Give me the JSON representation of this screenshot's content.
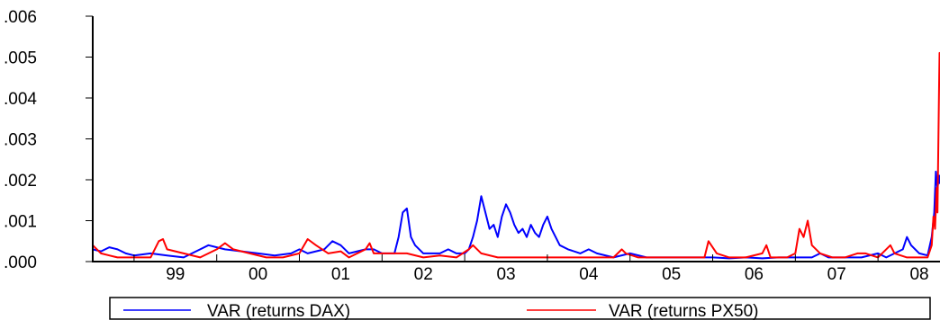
{
  "chart_data": {
    "type": "line",
    "title": "",
    "xlabel": "",
    "ylabel": "",
    "ylim": [
      0,
      0.006
    ],
    "xlim": [
      1998.5,
      2008.75
    ],
    "y_ticks": [
      ".000",
      ".001",
      ".002",
      ".003",
      ".004",
      ".005",
      ".006"
    ],
    "y_tick_values": [
      0,
      0.001,
      0.002,
      0.003,
      0.004,
      0.005,
      0.006
    ],
    "x_tick_labels": [
      "99",
      "00",
      "01",
      "02",
      "03",
      "04",
      "05",
      "06",
      "07",
      "08"
    ],
    "grid": false,
    "legend_position": "bottom",
    "series": [
      {
        "name": "VAR (returns DAX)",
        "color": "#0000ff",
        "points": [
          [
            1998.5,
            0.0003
          ],
          [
            1998.6,
            0.00025
          ],
          [
            1998.7,
            0.00035
          ],
          [
            1998.8,
            0.0003
          ],
          [
            1998.9,
            0.0002
          ],
          [
            1999.0,
            0.00015
          ],
          [
            1999.2,
            0.0002
          ],
          [
            1999.4,
            0.00015
          ],
          [
            1999.6,
            0.0001
          ],
          [
            1999.8,
            0.0003
          ],
          [
            1999.9,
            0.0004
          ],
          [
            2000.0,
            0.00035
          ],
          [
            2000.1,
            0.0003
          ],
          [
            2000.3,
            0.00025
          ],
          [
            2000.5,
            0.0002
          ],
          [
            2000.7,
            0.00015
          ],
          [
            2000.9,
            0.0002
          ],
          [
            2001.0,
            0.0003
          ],
          [
            2001.1,
            0.0002
          ],
          [
            2001.3,
            0.0003
          ],
          [
            2001.4,
            0.0005
          ],
          [
            2001.5,
            0.0004
          ],
          [
            2001.6,
            0.0002
          ],
          [
            2001.8,
            0.0003
          ],
          [
            2001.9,
            0.0003
          ],
          [
            2002.0,
            0.0002
          ],
          [
            2002.15,
            0.0002
          ],
          [
            2002.2,
            0.0006
          ],
          [
            2002.25,
            0.0012
          ],
          [
            2002.3,
            0.0013
          ],
          [
            2002.35,
            0.0006
          ],
          [
            2002.4,
            0.0004
          ],
          [
            2002.5,
            0.0002
          ],
          [
            2002.7,
            0.0002
          ],
          [
            2002.8,
            0.0003
          ],
          [
            2002.9,
            0.0002
          ],
          [
            2003.0,
            0.0002
          ],
          [
            2003.05,
            0.0003
          ],
          [
            2003.1,
            0.0006
          ],
          [
            2003.15,
            0.001
          ],
          [
            2003.2,
            0.0016
          ],
          [
            2003.25,
            0.0012
          ],
          [
            2003.3,
            0.0008
          ],
          [
            2003.35,
            0.0009
          ],
          [
            2003.4,
            0.0006
          ],
          [
            2003.45,
            0.0011
          ],
          [
            2003.5,
            0.0014
          ],
          [
            2003.55,
            0.0012
          ],
          [
            2003.6,
            0.0009
          ],
          [
            2003.65,
            0.0007
          ],
          [
            2003.7,
            0.0008
          ],
          [
            2003.75,
            0.0006
          ],
          [
            2003.8,
            0.0009
          ],
          [
            2003.85,
            0.0007
          ],
          [
            2003.9,
            0.0006
          ],
          [
            2003.95,
            0.0009
          ],
          [
            2004.0,
            0.0011
          ],
          [
            2004.05,
            0.0008
          ],
          [
            2004.1,
            0.0006
          ],
          [
            2004.15,
            0.0004
          ],
          [
            2004.25,
            0.0003
          ],
          [
            2004.4,
            0.0002
          ],
          [
            2004.5,
            0.0003
          ],
          [
            2004.6,
            0.0002
          ],
          [
            2004.8,
            0.0001
          ],
          [
            2005.0,
            0.0002
          ],
          [
            2005.2,
            0.0001
          ],
          [
            2005.4,
            0.0001
          ],
          [
            2005.6,
            0.0001
          ],
          [
            2005.8,
            0.0001
          ],
          [
            2006.0,
            0.0001
          ],
          [
            2006.2,
            8e-05
          ],
          [
            2006.4,
            0.0001
          ],
          [
            2006.6,
            8e-05
          ],
          [
            2006.8,
            0.0001
          ],
          [
            2007.0,
            0.0001
          ],
          [
            2007.2,
            0.0001
          ],
          [
            2007.3,
            0.0002
          ],
          [
            2007.4,
            0.0001
          ],
          [
            2007.6,
            0.0001
          ],
          [
            2007.8,
            0.0001
          ],
          [
            2008.0,
            0.0002
          ],
          [
            2008.1,
            0.0001
          ],
          [
            2008.3,
            0.0003
          ],
          [
            2008.35,
            0.0006
          ],
          [
            2008.4,
            0.0004
          ],
          [
            2008.5,
            0.0002
          ],
          [
            2008.6,
            0.00015
          ],
          [
            2008.65,
            0.0006
          ],
          [
            2008.68,
            0.0012
          ],
          [
            2008.7,
            0.0022
          ],
          [
            2008.72,
            0.0018
          ],
          [
            2008.74,
            0.0021
          ],
          [
            2008.75,
            0.0019
          ]
        ]
      },
      {
        "name": "VAR (returns PX50)",
        "color": "#ff0000",
        "points": [
          [
            1998.5,
            0.0004
          ],
          [
            1998.6,
            0.0002
          ],
          [
            1998.7,
            0.00015
          ],
          [
            1998.8,
            0.0001
          ],
          [
            1998.9,
            0.0001
          ],
          [
            1999.0,
            0.0001
          ],
          [
            1999.2,
            0.0001
          ],
          [
            1999.3,
            0.0005
          ],
          [
            1999.35,
            0.00055
          ],
          [
            1999.4,
            0.0003
          ],
          [
            1999.6,
            0.0002
          ],
          [
            1999.8,
            0.0001
          ],
          [
            2000.0,
            0.0003
          ],
          [
            2000.1,
            0.00045
          ],
          [
            2000.2,
            0.0003
          ],
          [
            2000.4,
            0.0002
          ],
          [
            2000.6,
            0.0001
          ],
          [
            2000.8,
            0.0001
          ],
          [
            2001.0,
            0.0002
          ],
          [
            2001.1,
            0.00055
          ],
          [
            2001.2,
            0.0004
          ],
          [
            2001.35,
            0.0002
          ],
          [
            2001.5,
            0.00025
          ],
          [
            2001.6,
            0.0001
          ],
          [
            2001.8,
            0.0003
          ],
          [
            2001.85,
            0.00045
          ],
          [
            2001.9,
            0.0002
          ],
          [
            2002.1,
            0.0002
          ],
          [
            2002.3,
            0.0002
          ],
          [
            2002.5,
            0.0001
          ],
          [
            2002.7,
            0.00015
          ],
          [
            2002.9,
            0.0001
          ],
          [
            2003.05,
            0.0003
          ],
          [
            2003.1,
            0.0004
          ],
          [
            2003.2,
            0.0002
          ],
          [
            2003.4,
            0.0001
          ],
          [
            2003.6,
            0.0001
          ],
          [
            2003.8,
            0.0001
          ],
          [
            2004.0,
            0.0001
          ],
          [
            2004.2,
            0.0001
          ],
          [
            2004.4,
            0.0001
          ],
          [
            2004.6,
            0.0001
          ],
          [
            2004.8,
            0.0001
          ],
          [
            2004.9,
            0.0003
          ],
          [
            2004.95,
            0.0002
          ],
          [
            2005.1,
            0.0001
          ],
          [
            2005.3,
            0.0001
          ],
          [
            2005.5,
            0.0001
          ],
          [
            2005.7,
            0.0001
          ],
          [
            2005.9,
            0.0001
          ],
          [
            2005.95,
            0.0005
          ],
          [
            2006.05,
            0.0002
          ],
          [
            2006.2,
            0.0001
          ],
          [
            2006.4,
            0.0001
          ],
          [
            2006.6,
            0.0002
          ],
          [
            2006.65,
            0.0004
          ],
          [
            2006.7,
            0.0001
          ],
          [
            2006.9,
            0.0001
          ],
          [
            2007.0,
            0.0002
          ],
          [
            2007.05,
            0.0008
          ],
          [
            2007.1,
            0.0006
          ],
          [
            2007.15,
            0.001
          ],
          [
            2007.2,
            0.0004
          ],
          [
            2007.3,
            0.0002
          ],
          [
            2007.45,
            0.0001
          ],
          [
            2007.6,
            0.0001
          ],
          [
            2007.75,
            0.0002
          ],
          [
            2007.85,
            0.0002
          ],
          [
            2008.0,
            0.0001
          ],
          [
            2008.15,
            0.0004
          ],
          [
            2008.2,
            0.0002
          ],
          [
            2008.35,
            0.0001
          ],
          [
            2008.5,
            0.0001
          ],
          [
            2008.6,
            0.0001
          ],
          [
            2008.65,
            0.0004
          ],
          [
            2008.67,
            0.0011
          ],
          [
            2008.69,
            0.0008
          ],
          [
            2008.71,
            0.0018
          ],
          [
            2008.72,
            0.0012
          ],
          [
            2008.74,
            0.0045
          ],
          [
            2008.745,
            0.0051
          ],
          [
            2008.75,
            0.0047
          ]
        ]
      }
    ]
  }
}
